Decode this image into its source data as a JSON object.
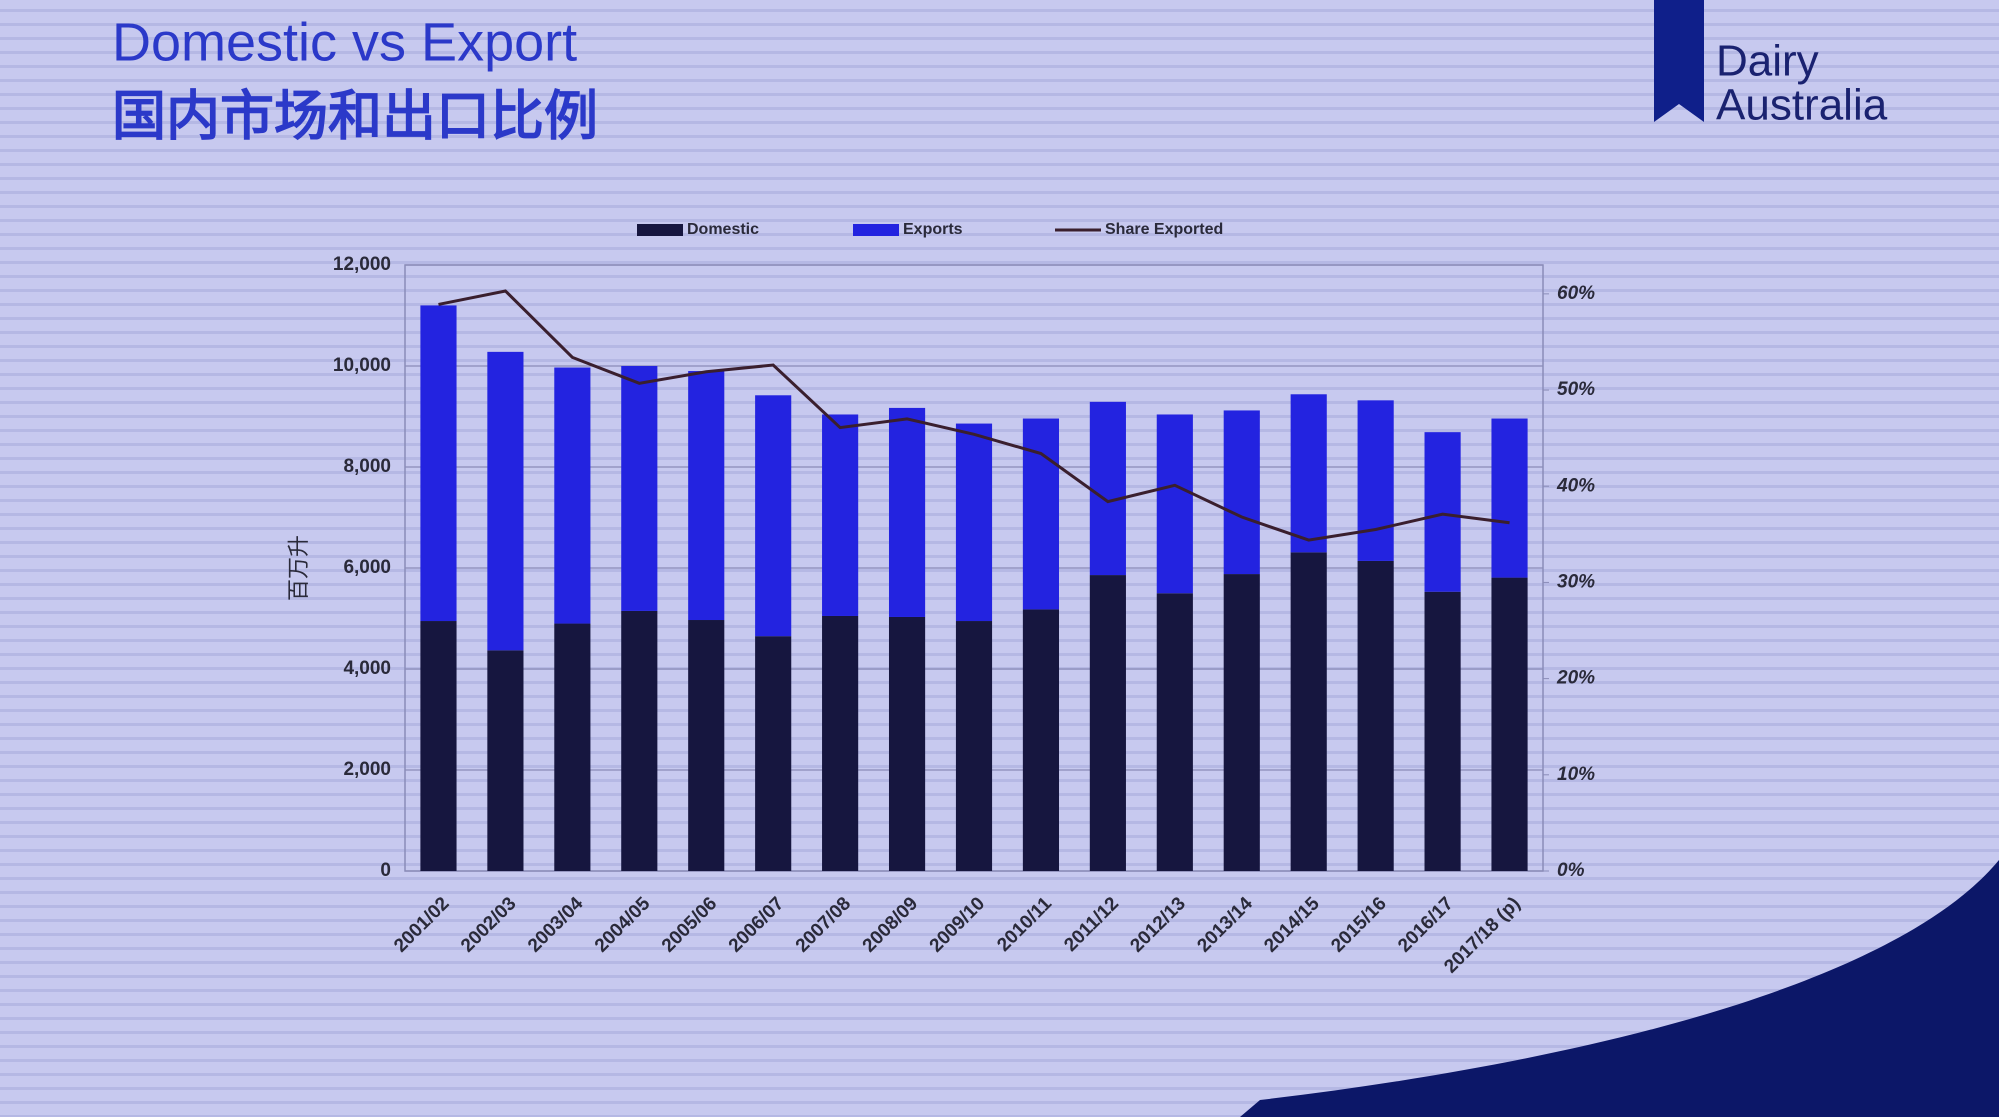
{
  "chart_data": {
    "type": "bar",
    "stacked": true,
    "title": "Domestic vs Export",
    "subtitle": "国内市场和出口比例",
    "ylabel": "百万升",
    "categories": [
      "2001/02",
      "2002/03",
      "2003/04",
      "2004/05",
      "2005/06",
      "2006/07",
      "2007/08",
      "2008/09",
      "2009/10",
      "2010/11",
      "2011/12",
      "2012/13",
      "2013/14",
      "2014/15",
      "2015/16",
      "2016/17",
      "2017/18 (p)"
    ],
    "series": [
      {
        "name": "Domestic",
        "color": "#16163f",
        "values": [
          4950,
          4370,
          4900,
          5150,
          4970,
          4650,
          5050,
          5030,
          4950,
          5180,
          5860,
          5500,
          5880,
          6310,
          6140,
          5530,
          5810
        ]
      },
      {
        "name": "Exports",
        "color": "#2323e0",
        "values": [
          6250,
          5910,
          5070,
          4850,
          4930,
          4770,
          3990,
          4140,
          3910,
          3780,
          3430,
          3540,
          3240,
          3130,
          3180,
          3160,
          3150
        ]
      },
      {
        "name": "Share Exported",
        "color": "#3a1f2e",
        "type": "line",
        "axis": "y2",
        "values": [
          58.9,
          60.3,
          53.4,
          50.7,
          51.9,
          52.6,
          46.1,
          47.0,
          45.4,
          43.4,
          38.4,
          40.1,
          36.8,
          34.4,
          35.5,
          37.1,
          36.2
        ]
      }
    ],
    "ylim": [
      0,
      12000
    ],
    "yticks": [
      0,
      {
        "value": 2000,
        "label": "2,000"
      },
      {
        "value": 4000,
        "label": "4,000"
      },
      {
        "value": 6000,
        "label": "6,000"
      },
      {
        "value": 8000,
        "label": "8,000"
      },
      {
        "value": 10000,
        "label": "10,000"
      },
      {
        "value": 12000,
        "label": "12,000"
      }
    ],
    "y2lim": [
      0,
      63
    ],
    "y2ticks": [
      {
        "value": 0,
        "label": "0%"
      },
      {
        "value": 10,
        "label": "10%"
      },
      {
        "value": 20,
        "label": "20%"
      },
      {
        "value": 30,
        "label": "30%"
      },
      {
        "value": 40,
        "label": "40%"
      },
      {
        "value": 50,
        "label": "50%"
      },
      {
        "value": 60,
        "label": "60%"
      }
    ],
    "grid": true,
    "legend": "top"
  },
  "logo": [
    "Dairy",
    "Australia"
  ]
}
